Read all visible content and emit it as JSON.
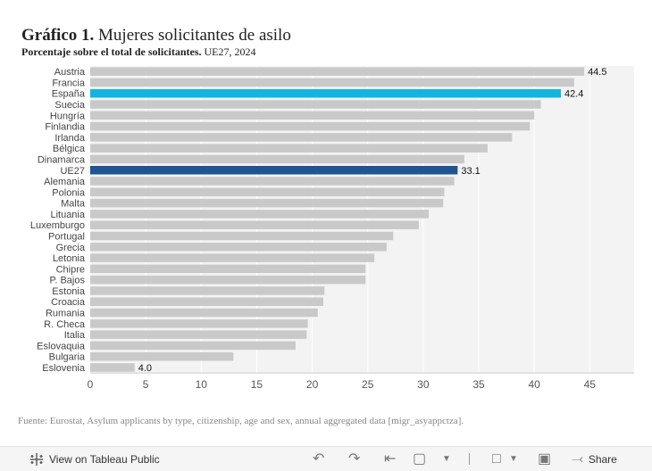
{
  "title_bold": "Gráfico 1.",
  "title_rest": "Mujeres solicitantes de asilo",
  "subtitle_bold": "Porcentaje sobre el total de solicitantes.",
  "subtitle_rest": "UE27, 2024",
  "source": "Fuente: Eurostat, Asylum applicants by type, citizenship, age and sex, annual aggregated data [migr_asyappctza].",
  "toolbar": {
    "view_label": "View on Tableau Public",
    "share_label": "Share"
  },
  "colors": {
    "default_bar": "#c9c9c9",
    "highlight_spain": "#12b5e0",
    "highlight_eu": "#1f5590",
    "plot_bg": "#f3f3f3"
  },
  "chart_data": {
    "type": "bar",
    "orientation": "horizontal",
    "categories": [
      "Austria",
      "Francia",
      "España",
      "Suecia",
      "Hungría",
      "Finlandia",
      "Irlanda",
      "Bélgica",
      "Dinamarca",
      "UE27",
      "Alemania",
      "Polonia",
      "Malta",
      "Lituania",
      "Luxemburgo",
      "Portugal",
      "Grecia",
      "Letonia",
      "Chipre",
      "P. Bajos",
      "Estonia",
      "Croacia",
      "Rumania",
      "R. Checa",
      "Italia",
      "Eslovaquia",
      "Bulgaria",
      "Eslovenia"
    ],
    "values": [
      44.5,
      43.6,
      42.4,
      40.6,
      40.0,
      39.6,
      38.0,
      35.8,
      33.7,
      33.1,
      32.8,
      31.9,
      31.8,
      30.5,
      29.6,
      27.3,
      26.7,
      25.6,
      24.8,
      24.8,
      21.1,
      21.0,
      20.5,
      19.6,
      19.5,
      18.5,
      12.9,
      4.0
    ],
    "highlights": {
      "España": "highlight_spain",
      "UE27": "highlight_eu"
    },
    "data_labels": {
      "Austria": "44.5",
      "España": "42.4",
      "UE27": "33.1",
      "Eslovenia": "4.0"
    },
    "x_ticks": [
      "0",
      "5",
      "10",
      "15",
      "20",
      "25",
      "30",
      "35",
      "40",
      "45"
    ],
    "xlim": [
      0,
      49
    ],
    "title": "Mujeres solicitantes de asilo",
    "xlabel": "",
    "ylabel": "",
    "grid": true
  }
}
